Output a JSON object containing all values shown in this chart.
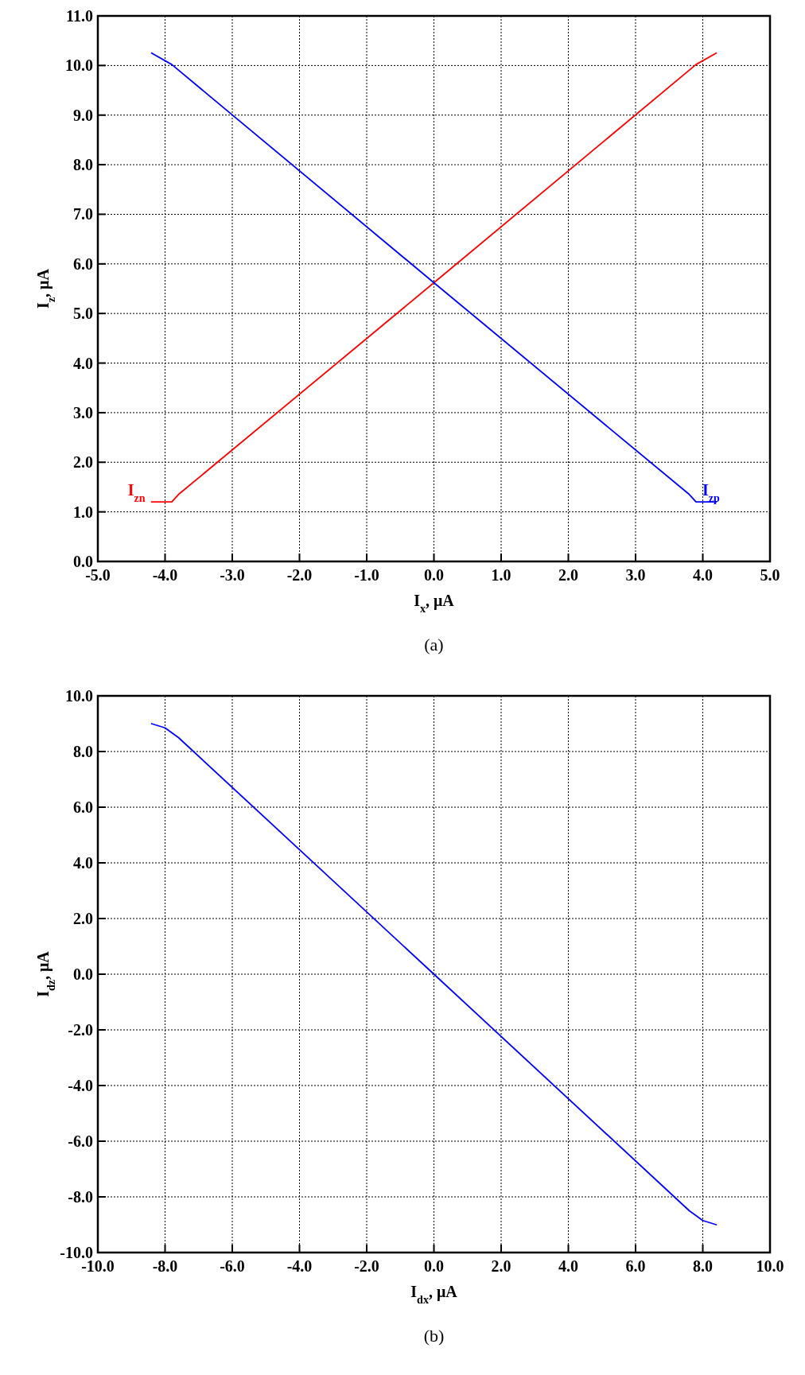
{
  "chart_data": [
    {
      "type": "line",
      "xlabel": "I$_{x}$, μA",
      "ylabel": "I$_{z}$, μA",
      "annotations": [
        "(a)"
      ],
      "grid": true,
      "legend": false,
      "line_style": "solid",
      "marker": "none",
      "xlim": [
        -5,
        5
      ],
      "ylim": [
        0,
        11
      ],
      "xticks": [
        {
          "value": -5,
          "label": "-5.0"
        },
        {
          "value": -4,
          "label": "-4.0"
        },
        {
          "value": -3,
          "label": "-3.0"
        },
        {
          "value": -2,
          "label": "-2.0"
        },
        {
          "value": -1,
          "label": "-1.0"
        },
        {
          "value": 0,
          "label": "0.0"
        },
        {
          "value": 1,
          "label": "1.0"
        },
        {
          "value": 2,
          "label": "2.0"
        },
        {
          "value": 3,
          "label": "3.0"
        },
        {
          "value": 4,
          "label": "4.0"
        },
        {
          "value": 5,
          "label": "5.0"
        }
      ],
      "yticks": [
        {
          "value": 0,
          "label": "0.0"
        },
        {
          "value": 1,
          "label": "1.0"
        },
        {
          "value": 2,
          "label": "2.0"
        },
        {
          "value": 3,
          "label": "3.0"
        },
        {
          "value": 4,
          "label": "4.0"
        },
        {
          "value": 5,
          "label": "5.0"
        },
        {
          "value": 6,
          "label": "6.0"
        },
        {
          "value": 7,
          "label": "7.0"
        },
        {
          "value": 8,
          "label": "8.0"
        },
        {
          "value": 9,
          "label": "9.0"
        },
        {
          "value": 10,
          "label": "10.0"
        },
        {
          "value": 11,
          "label": "11.0"
        }
      ],
      "series": [
        {
          "name": "I$_{zn}$",
          "color": "#ff0000",
          "x": [
            -4.2,
            -3.9,
            -3.8,
            0,
            3.9,
            4.2
          ],
          "values": [
            1.2,
            1.2,
            1.35,
            5.62,
            10.02,
            10.25
          ]
        },
        {
          "name": "I$_{zp}$",
          "color": "#0000ff",
          "x": [
            -4.2,
            -3.9,
            0,
            3.8,
            3.9,
            4.2
          ],
          "values": [
            10.25,
            10.02,
            5.62,
            1.35,
            1.2,
            1.2
          ]
        }
      ]
    },
    {
      "type": "line",
      "xlabel": "I$_{dx}$, μA",
      "ylabel": "I$_{dz}$, μA",
      "annotations": [
        "(b)"
      ],
      "grid": true,
      "legend": false,
      "line_style": "solid",
      "marker": "none",
      "xlim": [
        -10,
        10
      ],
      "ylim": [
        -10,
        10
      ],
      "xticks": [
        {
          "value": -10,
          "label": "-10.0"
        },
        {
          "value": -8,
          "label": "-8.0"
        },
        {
          "value": -6,
          "label": "-6.0"
        },
        {
          "value": -4,
          "label": "-4.0"
        },
        {
          "value": -2,
          "label": "-2.0"
        },
        {
          "value": 0,
          "label": "0.0"
        },
        {
          "value": 2,
          "label": "2.0"
        },
        {
          "value": 4,
          "label": "4.0"
        },
        {
          "value": 6,
          "label": "6.0"
        },
        {
          "value": 8,
          "label": "8.0"
        },
        {
          "value": 10,
          "label": "10.0"
        }
      ],
      "yticks": [
        {
          "value": -10,
          "label": "-10.0"
        },
        {
          "value": -8,
          "label": "-8.0"
        },
        {
          "value": -6,
          "label": "-6.0"
        },
        {
          "value": -4,
          "label": "-4.0"
        },
        {
          "value": -2,
          "label": "-2.0"
        },
        {
          "value": 0,
          "label": "0.0"
        },
        {
          "value": 2,
          "label": "2.0"
        },
        {
          "value": 4,
          "label": "4.0"
        },
        {
          "value": 6,
          "label": "6.0"
        },
        {
          "value": 8,
          "label": "8.0"
        },
        {
          "value": 10,
          "label": "10.0"
        }
      ],
      "series": [
        {
          "color": "#0000ff",
          "x": [
            -8.4,
            -8.0,
            -7.6,
            0,
            7.6,
            8.0,
            8.4
          ],
          "values": [
            9.0,
            8.85,
            8.5,
            0,
            -8.5,
            -8.85,
            -9.0
          ]
        }
      ]
    }
  ]
}
